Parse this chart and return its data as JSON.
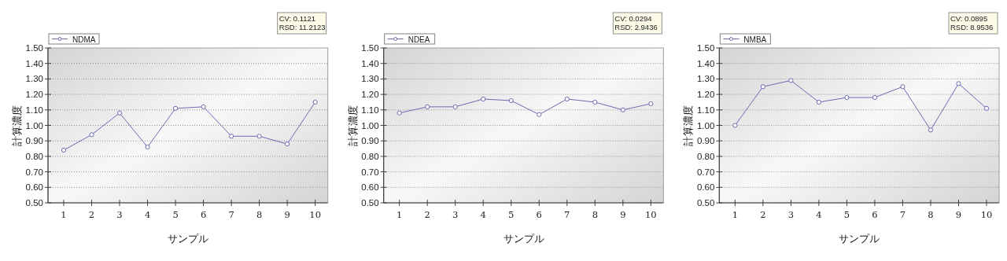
{
  "chart_data": [
    {
      "type": "line",
      "xlabel": "サンプル",
      "ylabel": "計算濃度",
      "categories": [
        "1",
        "2",
        "3",
        "4",
        "5",
        "6",
        "7",
        "8",
        "9",
        "10"
      ],
      "series": [
        {
          "name": "NDMA",
          "color": "#6b6bb0",
          "values": [
            0.84,
            0.94,
            1.08,
            0.86,
            1.11,
            1.12,
            0.93,
            0.93,
            0.88,
            1.15
          ]
        }
      ],
      "ylim": [
        0.5,
        1.5
      ],
      "yticks": [
        {
          "value": 0.5,
          "label": "0.50"
        },
        {
          "value": 0.6,
          "label": "0.60"
        },
        {
          "value": 0.7,
          "label": "0.70"
        },
        {
          "value": 0.8,
          "label": "0.80"
        },
        {
          "value": 0.9,
          "label": "0.90"
        },
        {
          "value": 1.0,
          "label": "1.00"
        },
        {
          "value": 1.1,
          "label": "1.10"
        },
        {
          "value": 1.2,
          "label": "1.20"
        },
        {
          "value": 1.3,
          "label": "1.30"
        },
        {
          "value": 1.4,
          "label": "1.40"
        },
        {
          "value": 1.5,
          "label": "1.50"
        }
      ],
      "annotations": [
        "CV: 0.1121",
        "RSD: 11.2123"
      ],
      "grid": "y",
      "legend": "top left",
      "marker": "circle"
    },
    {
      "type": "line",
      "xlabel": "サンプル",
      "ylabel": "計算濃度",
      "categories": [
        "1",
        "2",
        "3",
        "4",
        "5",
        "6",
        "7",
        "8",
        "9",
        "10"
      ],
      "series": [
        {
          "name": "NDEA",
          "color": "#6b6bb0",
          "values": [
            1.08,
            1.12,
            1.12,
            1.17,
            1.16,
            1.07,
            1.17,
            1.15,
            1.1,
            1.14
          ]
        }
      ],
      "ylim": [
        0.5,
        1.5
      ],
      "yticks": [
        {
          "value": 0.5,
          "label": "0.50"
        },
        {
          "value": 0.6,
          "label": "0.60"
        },
        {
          "value": 0.7,
          "label": "0.70"
        },
        {
          "value": 0.8,
          "label": "0.80"
        },
        {
          "value": 0.9,
          "label": "0.90"
        },
        {
          "value": 1.0,
          "label": "1.00"
        },
        {
          "value": 1.1,
          "label": "1.10"
        },
        {
          "value": 1.2,
          "label": "1.20"
        },
        {
          "value": 1.3,
          "label": "1.30"
        },
        {
          "value": 1.4,
          "label": "1.40"
        },
        {
          "value": 1.5,
          "label": "1.50"
        }
      ],
      "annotations": [
        "CV: 0.0294",
        "RSD: 2.9436"
      ],
      "grid": "y",
      "legend": "top left",
      "marker": "circle"
    },
    {
      "type": "line",
      "xlabel": "サンプル",
      "ylabel": "計算濃度",
      "categories": [
        "1",
        "2",
        "3",
        "4",
        "5",
        "6",
        "7",
        "8",
        "9",
        "10"
      ],
      "series": [
        {
          "name": "NMBA",
          "color": "#6b6bb0",
          "values": [
            1.0,
            1.25,
            1.29,
            1.15,
            1.18,
            1.18,
            1.25,
            0.97,
            1.27,
            1.11
          ]
        }
      ],
      "ylim": [
        0.5,
        1.5
      ],
      "yticks": [
        {
          "value": 0.5,
          "label": "0.50"
        },
        {
          "value": 0.6,
          "label": "0.60"
        },
        {
          "value": 0.7,
          "label": "0.70"
        },
        {
          "value": 0.8,
          "label": "0.80"
        },
        {
          "value": 0.9,
          "label": "0.90"
        },
        {
          "value": 1.0,
          "label": "1.00"
        },
        {
          "value": 1.1,
          "label": "1.10"
        },
        {
          "value": 1.2,
          "label": "1.20"
        },
        {
          "value": 1.3,
          "label": "1.30"
        },
        {
          "value": 1.4,
          "label": "1.40"
        },
        {
          "value": 1.5,
          "label": "1.50"
        }
      ],
      "annotations": [
        "CV: 0.0895",
        "RSD: 8.9536"
      ],
      "grid": "y",
      "legend": "top left",
      "marker": "circle"
    }
  ]
}
